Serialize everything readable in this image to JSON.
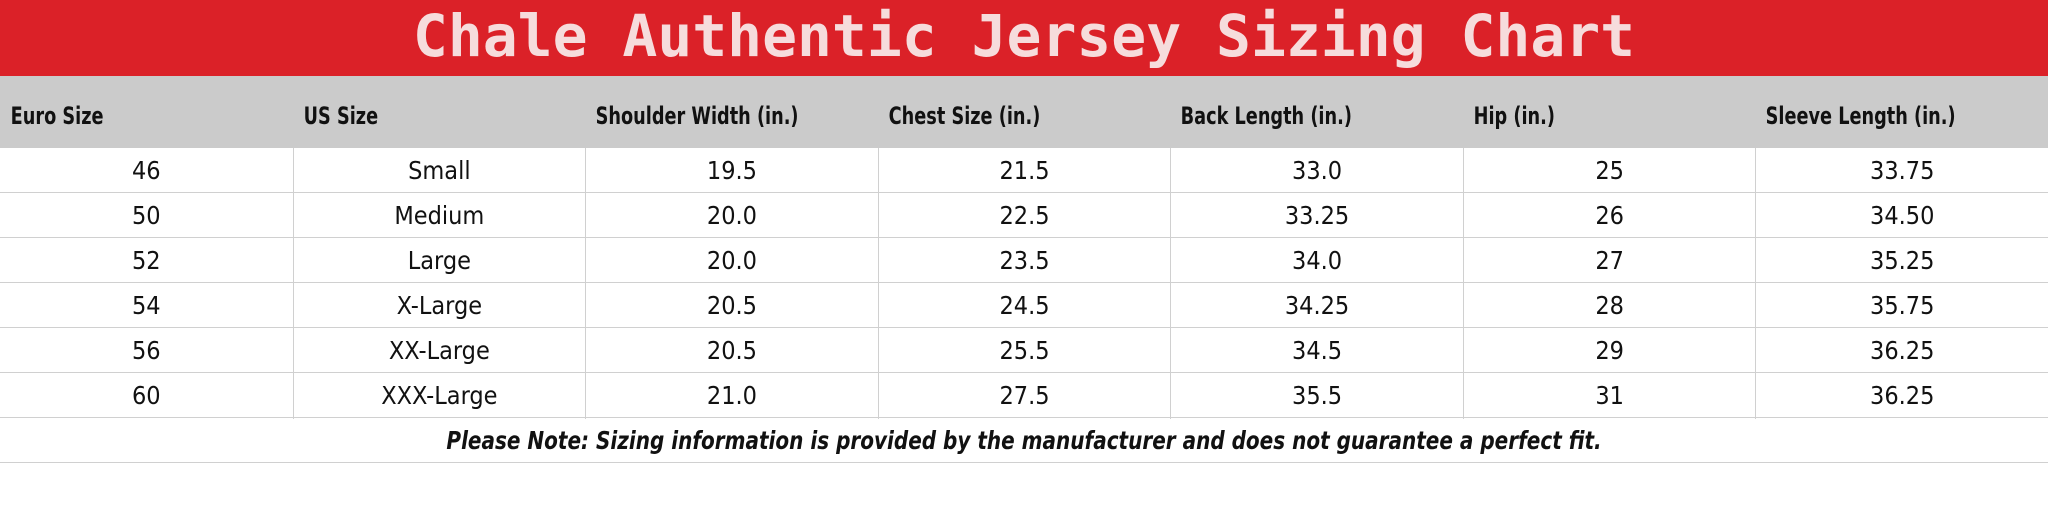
{
  "header": {
    "title": "Chale Authentic Jersey Sizing Chart"
  },
  "table": {
    "columns": [
      "Euro Size",
      "US Size",
      "Shoulder Width (in.)",
      "Chest Size (in.)",
      "Back Length (in.)",
      "Hip (in.)",
      "Sleeve Length (in.)"
    ],
    "rows": [
      [
        "46",
        "Small",
        "19.5",
        "21.5",
        "33.0",
        "25",
        "33.75"
      ],
      [
        "50",
        "Medium",
        "20.0",
        "22.5",
        "33.25",
        "26",
        "34.50"
      ],
      [
        "52",
        "Large",
        "20.0",
        "23.5",
        "34.0",
        "27",
        "35.25"
      ],
      [
        "54",
        "X-Large",
        "20.5",
        "24.5",
        "34.25",
        "28",
        "35.75"
      ],
      [
        "56",
        "XX-Large",
        "20.5",
        "25.5",
        "34.5",
        "29",
        "36.25"
      ],
      [
        "60",
        "XXX-Large",
        "21.0",
        "27.5",
        "35.5",
        "31",
        "36.25"
      ]
    ]
  },
  "note": "Please Note: Sizing information is provided by the manufacturer and does not guarantee a perfect fit."
}
